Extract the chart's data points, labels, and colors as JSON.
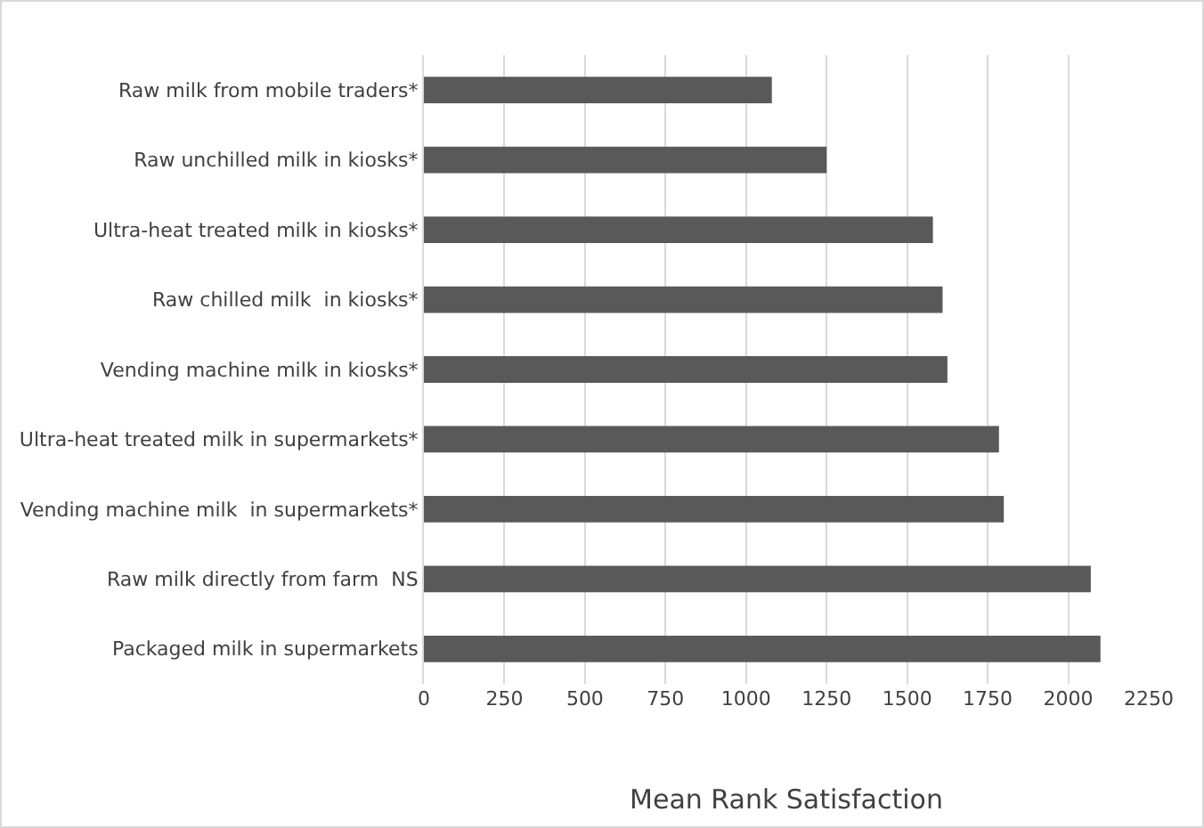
{
  "chart_data": {
    "type": "bar",
    "orientation": "horizontal",
    "xlabel": "Mean Rank Satisfaction",
    "categories": [
      "Raw milk from mobile traders*",
      "Raw unchilled milk in kiosks*",
      "Ultra-heat treated milk in kiosks*",
      "Raw chilled milk  in kiosks*",
      "Vending machine milk in kiosks*",
      "Ultra-heat treated milk in supermarkets*",
      "Vending machine milk  in supermarkets*",
      "Raw milk directly from farm  NS",
      "Packaged milk in supermarkets"
    ],
    "values": [
      1080,
      1250,
      1580,
      1610,
      1625,
      1785,
      1800,
      2070,
      2100
    ],
    "color": "#595959",
    "xlim": [
      0,
      2250
    ],
    "xticks": [
      0,
      250,
      500,
      750,
      1000,
      1250,
      1500,
      1750,
      2000,
      2250
    ],
    "grid": "x"
  }
}
